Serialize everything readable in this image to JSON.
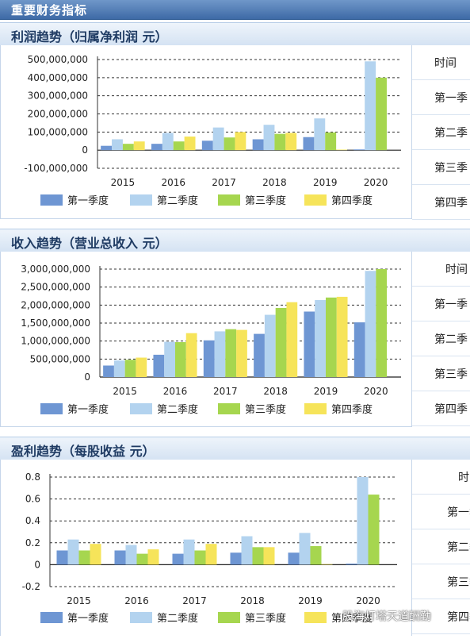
{
  "page": {
    "header_title": "重要财务指标",
    "watermark": "股海灯塔天道酬勤"
  },
  "side_labels": [
    "时间",
    "第一季",
    "第二季",
    "第三季",
    "第四季"
  ],
  "sections": [
    {
      "title": "利润趋势（归属净利润 元）"
    },
    {
      "title": "收入趋势（营业总收入 元）"
    },
    {
      "title": "盈利趋势（每股收益 元）"
    }
  ],
  "colors": {
    "q1": "#6e96d3",
    "q2": "#b3d3ef",
    "q3": "#a6d64f",
    "q4": "#f6e45a",
    "header": "#3e6aa6"
  },
  "chart_data": [
    {
      "type": "bar",
      "title": "利润趋势（归属净利润 元）",
      "categories": [
        "2015",
        "2016",
        "2017",
        "2018",
        "2019",
        "2020"
      ],
      "ylim": [
        -100000000,
        500000000
      ],
      "yticks": [
        -100000000,
        0,
        100000000,
        200000000,
        300000000,
        400000000,
        500000000
      ],
      "ytick_labels": [
        "-100,000,000",
        "0",
        "100,000,000",
        "200,000,000",
        "300,000,000",
        "400,000,000",
        "500,000,000"
      ],
      "grid": true,
      "legend_position": "bottom",
      "series": [
        {
          "name": "第一季度",
          "values": [
            24000000,
            35000000,
            52000000,
            60000000,
            72000000,
            4000000
          ]
        },
        {
          "name": "第二季度",
          "values": [
            60000000,
            95000000,
            125000000,
            140000000,
            175000000,
            490000000
          ]
        },
        {
          "name": "第三季度",
          "values": [
            35000000,
            48000000,
            70000000,
            90000000,
            98000000,
            400000000
          ]
        },
        {
          "name": "第四季度",
          "values": [
            48000000,
            75000000,
            100000000,
            95000000,
            3000000,
            null
          ]
        }
      ]
    },
    {
      "type": "bar",
      "title": "收入趋势（营业总收入 元）",
      "categories": [
        "2015",
        "2016",
        "2017",
        "2018",
        "2019",
        "2020"
      ],
      "ylim": [
        0,
        3000000000
      ],
      "yticks": [
        0,
        500000000,
        1000000000,
        1500000000,
        2000000000,
        2500000000,
        3000000000
      ],
      "ytick_labels": [
        "0",
        "500,000,000",
        "1,000,000,000",
        "1,500,000,000",
        "2,000,000,000",
        "2,500,000,000",
        "3,000,000,000"
      ],
      "grid": true,
      "legend_position": "bottom",
      "series": [
        {
          "name": "第一季度",
          "values": [
            320000000,
            620000000,
            1020000000,
            1200000000,
            1820000000,
            1520000000
          ]
        },
        {
          "name": "第二季度",
          "values": [
            460000000,
            980000000,
            1270000000,
            1730000000,
            2140000000,
            2950000000
          ]
        },
        {
          "name": "第三季度",
          "values": [
            480000000,
            970000000,
            1330000000,
            1920000000,
            2210000000,
            3000000000
          ]
        },
        {
          "name": "第四季度",
          "values": [
            540000000,
            1220000000,
            1310000000,
            2080000000,
            2230000000,
            null
          ]
        }
      ]
    },
    {
      "type": "bar",
      "title": "盈利趋势（每股收益 元）",
      "categories": [
        "2015",
        "2016",
        "2017",
        "2018",
        "2019",
        "2020"
      ],
      "ylim": [
        -0.2,
        0.8
      ],
      "yticks": [
        -0.2,
        0,
        0.2,
        0.4,
        0.6,
        0.8
      ],
      "ytick_labels": [
        "-0.2",
        "0",
        "0.2",
        "0.4",
        "0.6",
        "0.8"
      ],
      "grid": true,
      "legend_position": "bottom",
      "series": [
        {
          "name": "第一季度",
          "values": [
            0.13,
            0.13,
            0.1,
            0.11,
            0.11,
            0.01
          ]
        },
        {
          "name": "第二季度",
          "values": [
            0.23,
            0.18,
            0.23,
            0.26,
            0.29,
            0.8
          ]
        },
        {
          "name": "第三季度",
          "values": [
            0.13,
            0.1,
            0.13,
            0.16,
            0.17,
            0.64
          ]
        },
        {
          "name": "第四季度",
          "values": [
            0.19,
            0.14,
            0.19,
            0.16,
            0.005,
            null
          ]
        }
      ]
    }
  ]
}
